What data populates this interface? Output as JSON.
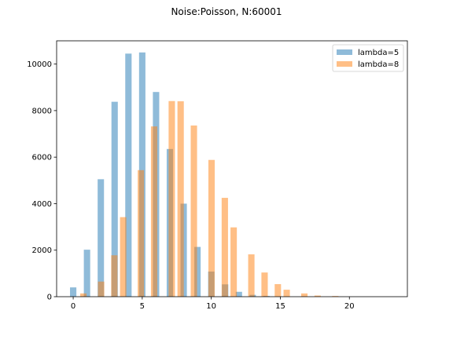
{
  "chart_data": {
    "type": "bar",
    "title": "Noise:Poisson, N:60001",
    "xlabel": "",
    "ylabel": "",
    "xlim": [
      -1.2,
      24.2
    ],
    "ylim": [
      0,
      11000
    ],
    "xticks": [
      0,
      5,
      10,
      15,
      20
    ],
    "yticks": [
      0,
      2000,
      4000,
      6000,
      8000,
      10000
    ],
    "legend_position": "top-right",
    "bar_width": 0.46,
    "series": [
      {
        "name": "lambda=5",
        "color": "#1f77b4",
        "opacity": 0.5,
        "x": [
          0,
          1,
          2,
          3,
          4,
          5,
          6,
          7,
          8,
          9,
          10,
          11,
          12,
          13,
          14
        ],
        "values": [
          400,
          2020,
          5050,
          8380,
          10450,
          10500,
          8800,
          6350,
          4000,
          2140,
          1080,
          530,
          210,
          80,
          30
        ]
      },
      {
        "name": "lambda=8",
        "color": "#ff7f0e",
        "opacity": 0.5,
        "x": [
          0.74,
          2.02,
          2.98,
          3.62,
          4.9,
          5.86,
          7.14,
          7.78,
          8.74,
          10.02,
          10.98,
          11.62,
          12.9,
          13.86,
          14.82,
          15.46,
          16.74,
          17.7,
          18.98
        ],
        "values": [
          140,
          650,
          1780,
          3420,
          5440,
          7320,
          8410,
          8400,
          7360,
          5880,
          4250,
          2980,
          1820,
          1040,
          540,
          300,
          140,
          50,
          30
        ]
      }
    ]
  }
}
